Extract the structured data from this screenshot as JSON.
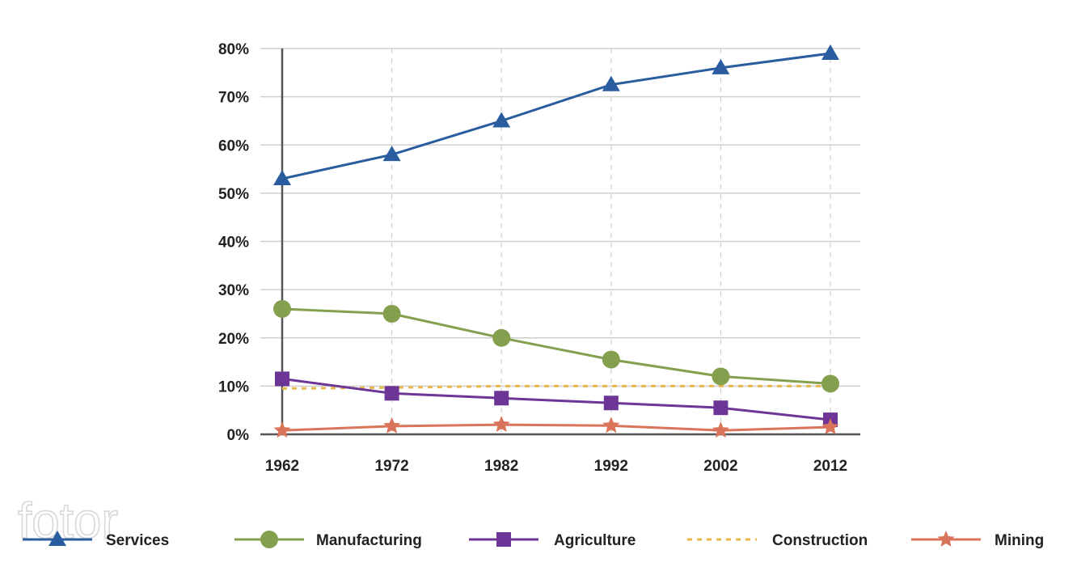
{
  "chart_data": {
    "type": "line",
    "title": "",
    "xlabel": "",
    "ylabel": "",
    "x": [
      "1962",
      "1972",
      "1982",
      "1992",
      "2002",
      "2012"
    ],
    "ylim": [
      0,
      80
    ],
    "yticks": [
      0,
      10,
      20,
      30,
      40,
      50,
      60,
      70,
      80
    ],
    "ytick_labels": [
      "0%",
      "10%",
      "20%",
      "30%",
      "40%",
      "50%",
      "60%",
      "70%",
      "80%"
    ],
    "grid": "horizontal solid, vertical dashed",
    "legend_position": "bottom",
    "series": [
      {
        "name": "Services",
        "marker": "triangle",
        "line": "solid",
        "color": "#2a5d9f",
        "values": [
          53,
          58,
          65,
          72.5,
          76,
          79
        ]
      },
      {
        "name": "Manufacturing",
        "marker": "circle",
        "line": "solid",
        "color": "#84a04f",
        "values": [
          26,
          25,
          20,
          15.5,
          12,
          10.5
        ]
      },
      {
        "name": "Agriculture",
        "marker": "square",
        "line": "solid",
        "color": "#6d3596",
        "values": [
          11.5,
          8.5,
          7.5,
          6.5,
          5.5,
          3
        ]
      },
      {
        "name": "Construction",
        "marker": "none",
        "line": "dotted",
        "color": "#e8b84b",
        "values": [
          9.5,
          9.7,
          10,
          10,
          10,
          10
        ]
      },
      {
        "name": "Mining",
        "marker": "star",
        "line": "solid",
        "color": "#d9735a",
        "values": [
          0.8,
          1.7,
          2,
          1.8,
          0.8,
          1.5
        ]
      }
    ]
  },
  "watermark": "fotor"
}
